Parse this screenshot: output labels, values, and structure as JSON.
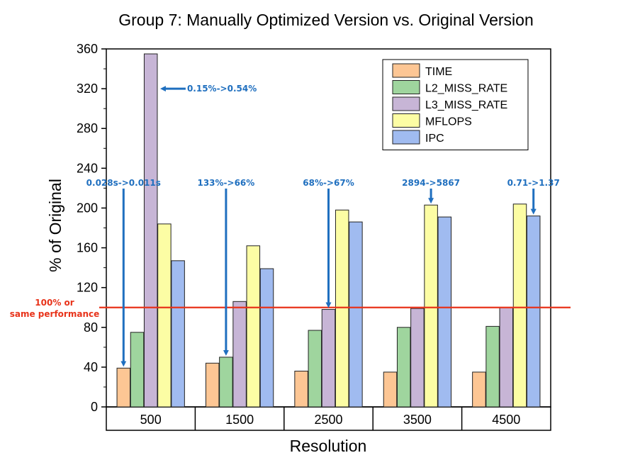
{
  "chart_data": {
    "type": "bar",
    "title": "Group 7: Manually Optimized Version vs. Original Version",
    "xlabel": "Resolution",
    "ylabel": "% of Original",
    "ylim": [
      0,
      360
    ],
    "yticks": [
      "0",
      "40",
      "80",
      "120",
      "160",
      "200",
      "240",
      "280",
      "320",
      "360"
    ],
    "categories": [
      "500",
      "1500",
      "2500",
      "3500",
      "4500"
    ],
    "series": [
      {
        "name": "TIME",
        "color": "#FDC694",
        "values": [
          39,
          44,
          36,
          35,
          35
        ]
      },
      {
        "name": "L2_MISS_RATE",
        "color": "#9FD59E",
        "values": [
          75,
          50,
          77,
          80,
          81
        ]
      },
      {
        "name": "L3_MISS_RATE",
        "color": "#C7B5D6",
        "values": [
          355,
          106,
          98,
          99,
          100
        ]
      },
      {
        "name": "MFLOPS",
        "color": "#FCFDA4",
        "values": [
          184,
          162,
          198,
          203,
          204
        ]
      },
      {
        "name": "IPC",
        "color": "#A0BBF0",
        "values": [
          147,
          139,
          186,
          191,
          192
        ]
      }
    ],
    "legend_position": "top-right",
    "grid": false,
    "reference_line": {
      "value": 100,
      "color": "#E8331A",
      "label_line1": "100% or",
      "label_line2": "same performance"
    },
    "annotations": [
      {
        "text": "0.15%->0.54%",
        "category": "500",
        "series": "L3_MISS_RATE",
        "side": "right"
      },
      {
        "text": "0.028s->0.011s",
        "category": "500",
        "series": "TIME",
        "side": "top"
      },
      {
        "text": "133%->66%",
        "category": "1500",
        "series": "L2_MISS_RATE",
        "side": "top"
      },
      {
        "text": "68%->67%",
        "category": "2500",
        "series": "L3_MISS_RATE",
        "side": "top"
      },
      {
        "text": "2894->5867",
        "category": "3500",
        "series": "MFLOPS",
        "side": "top"
      },
      {
        "text": "0.71->1.37",
        "category": "4500",
        "series": "IPC",
        "side": "top"
      }
    ],
    "annotation_color": "#1F6FBF"
  }
}
